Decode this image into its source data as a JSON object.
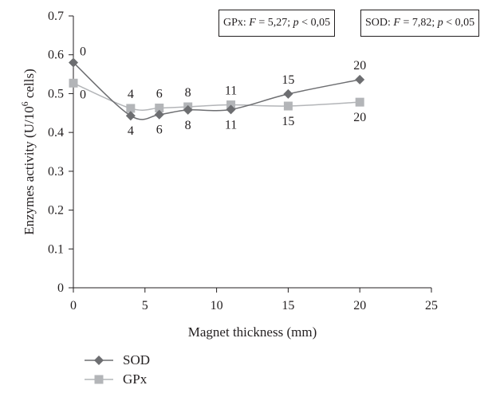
{
  "chart_data": {
    "type": "line",
    "xlabel": "Magnet thickness (mm)",
    "ylabel_prefix": "Enzymes activity (U/10",
    "ylabel_sup": "6",
    "ylabel_suffix": " cells)",
    "xlim": [
      0,
      25
    ],
    "ylim": [
      0,
      0.7
    ],
    "x_ticks": [
      0,
      5,
      10,
      15,
      20,
      25
    ],
    "y_ticks": [
      0,
      0.1,
      0.2,
      0.3,
      0.4,
      0.5,
      0.6,
      0.7
    ],
    "x": [
      0,
      4,
      6,
      8,
      11,
      15,
      20
    ],
    "series": [
      {
        "name": "SOD",
        "marker": "diamond",
        "color": "#6d6e71",
        "values": [
          0.58,
          0.443,
          0.446,
          0.458,
          0.459,
          0.499,
          0.536
        ],
        "point_labels": [
          "0",
          "4",
          "6",
          "8",
          "11",
          "15",
          "20"
        ],
        "label_position": [
          "above-right",
          "below",
          "below",
          "below",
          "below",
          "above",
          "above"
        ]
      },
      {
        "name": "GPx",
        "marker": "square",
        "color": "#b3b5b8",
        "values": [
          0.527,
          0.462,
          0.463,
          0.466,
          0.471,
          0.468,
          0.478
        ],
        "point_labels": [
          "0",
          "4",
          "6",
          "8",
          "11",
          "15",
          "20"
        ],
        "label_position": [
          "below-right",
          "above",
          "above",
          "above",
          "above",
          "below",
          "below"
        ]
      }
    ],
    "annotations": {
      "gpx": {
        "name": "GPx",
        "F_val": "5,27",
        "p_val": "0,05"
      },
      "sod": {
        "name": "SOD",
        "F_val": "7,82",
        "p_val": "0,05"
      }
    },
    "legend": {
      "placement": "bottom-left",
      "entries": [
        "SOD",
        "GPx"
      ]
    },
    "grid": false
  }
}
